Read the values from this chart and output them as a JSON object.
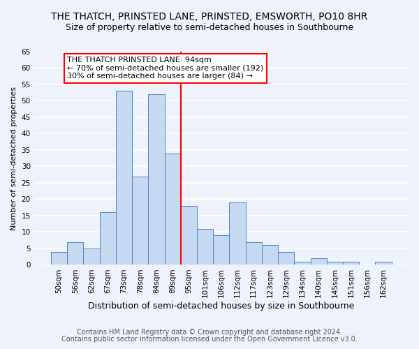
{
  "title": "THE THATCH, PRINSTED LANE, PRINSTED, EMSWORTH, PO10 8HR",
  "subtitle": "Size of property relative to semi-detached houses in Southbourne",
  "xlabel": "Distribution of semi-detached houses by size in Southbourne",
  "ylabel": "Number of semi-detached properties",
  "bin_labels": [
    "50sqm",
    "56sqm",
    "62sqm",
    "67sqm",
    "73sqm",
    "78sqm",
    "84sqm",
    "89sqm",
    "95sqm",
    "101sqm",
    "106sqm",
    "112sqm",
    "117sqm",
    "123sqm",
    "129sqm",
    "134sqm",
    "140sqm",
    "145sqm",
    "151sqm",
    "156sqm",
    "162sqm"
  ],
  "bar_values": [
    4,
    7,
    5,
    16,
    53,
    27,
    52,
    34,
    18,
    11,
    9,
    19,
    7,
    6,
    4,
    1,
    2,
    1,
    1,
    0,
    1
  ],
  "bar_color": "#c6d9f0",
  "bar_edge_color": "#4a86c8",
  "highlight_line_color": "red",
  "annotation_box_text": "THE THATCH PRINSTED LANE: 94sqm\n← 70% of semi-detached houses are smaller (192)\n30% of semi-detached houses are larger (84) →",
  "annotation_box_color": "white",
  "annotation_box_edgecolor": "red",
  "footer_line1": "Contains HM Land Registry data © Crown copyright and database right 2024.",
  "footer_line2": "Contains public sector information licensed under the Open Government Licence v3.0.",
  "ylim": [
    0,
    65
  ],
  "background_color": "#eef2fb",
  "grid_color": "white",
  "title_fontsize": 10,
  "subtitle_fontsize": 9,
  "xlabel_fontsize": 9,
  "ylabel_fontsize": 8,
  "tick_fontsize": 7.5,
  "annotation_fontsize": 8,
  "footer_fontsize": 7
}
